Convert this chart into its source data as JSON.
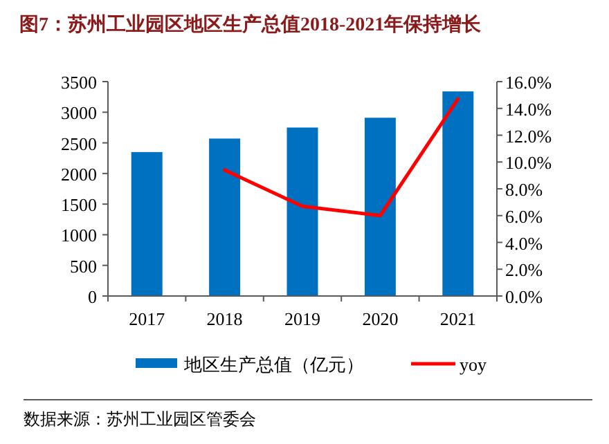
{
  "chart_data": {
    "type": "bar",
    "title": "图7：苏州工业园区地区生产总值2018-2021年保持增长",
    "categories": [
      "2017",
      "2018",
      "2019",
      "2020",
      "2021"
    ],
    "series": [
      {
        "name": "地区生产总值（亿元）",
        "color": "#0070c0",
        "values": [
          2350,
          2570,
          2750,
          2910,
          3340
        ]
      },
      {
        "name": "yoy",
        "type": "line",
        "axis": "y2",
        "color": "#ff0000",
        "values": [
          null,
          9.4,
          6.7,
          6.0,
          14.7
        ]
      }
    ],
    "ylim": [
      0,
      3500
    ],
    "yticks": [
      0,
      500,
      1000,
      1500,
      2000,
      2500,
      3000,
      3500
    ],
    "y2lim": [
      0,
      16
    ],
    "y2ticks": [
      {
        "value": 0,
        "label": "0.0%"
      },
      {
        "value": 2,
        "label": "2.0%"
      },
      {
        "value": 4,
        "label": "4.0%"
      },
      {
        "value": 6,
        "label": "6.0%"
      },
      {
        "value": 8,
        "label": "8.0%"
      },
      {
        "value": 10,
        "label": "10.0%"
      },
      {
        "value": 12,
        "label": "12.0%"
      },
      {
        "value": 14,
        "label": "14.0%"
      },
      {
        "value": 16,
        "label": "16.0%"
      }
    ],
    "legend": "bottom",
    "annotations": [
      "数据来源：苏州工业园区管委会"
    ]
  }
}
